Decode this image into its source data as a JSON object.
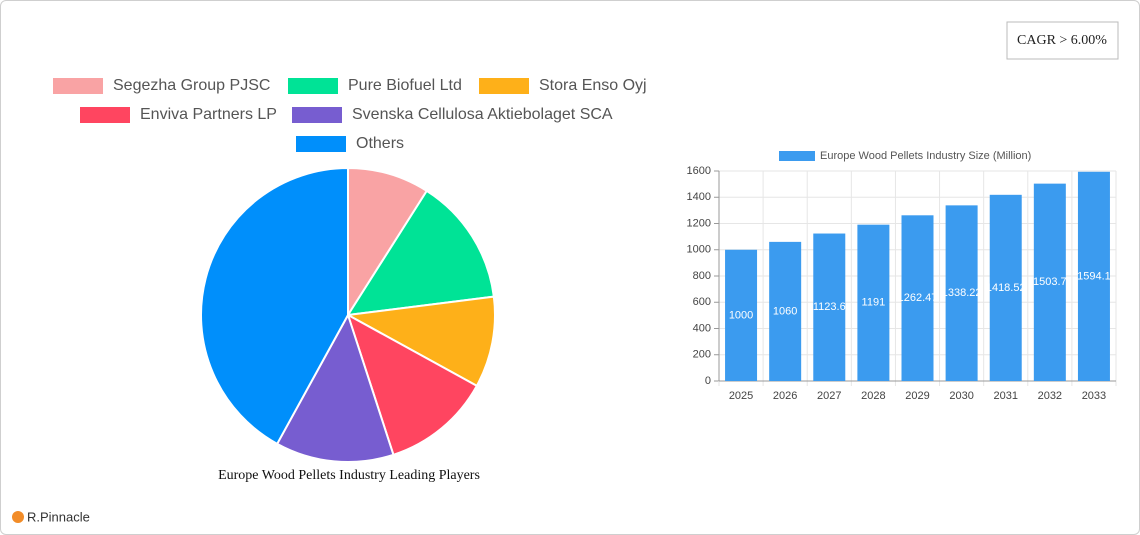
{
  "badge": "CAGR > 6.00%",
  "logo": "R.Pinnacle",
  "chart_data": [
    {
      "type": "pie",
      "title": "Europe Wood Pellets Industry Leading Players",
      "categories": [
        "Segezha Group PJSC",
        "Pure Biofuel Ltd",
        "Stora Enso Oyj",
        "Enviva Partners LP",
        "Svenska Cellulosa Aktiebolaget SCA",
        "Others"
      ],
      "values": [
        9,
        14,
        10,
        12,
        13,
        42
      ],
      "colors": [
        "#f9a3a4",
        "#00e396",
        "#feb019",
        "#ff4560",
        "#775dd0",
        "#008ffb"
      ]
    },
    {
      "type": "bar",
      "categories": [
        "2025",
        "2026",
        "2027",
        "2028",
        "2029",
        "2030",
        "2031",
        "2032",
        "2033"
      ],
      "series": [
        {
          "name": "Europe Wood Pellets Industry Size (Million)",
          "color": "#3b9bef",
          "values": [
            1000,
            1060,
            1123.6,
            1191,
            1262.47,
            1338.22,
            1418.52,
            1503.7,
            1594.1
          ]
        }
      ],
      "ylim": [
        0,
        1600
      ],
      "yticks": [
        0,
        200,
        400,
        600,
        800,
        1000,
        1200,
        1400,
        1600
      ],
      "grid": true
    }
  ]
}
